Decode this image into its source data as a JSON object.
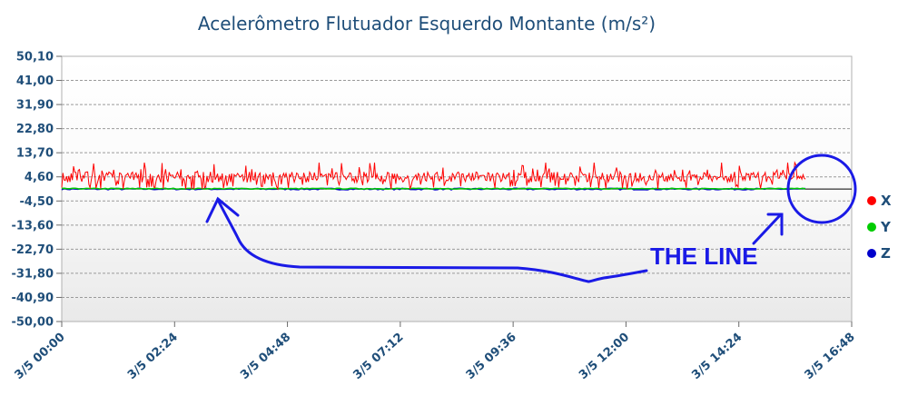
{
  "chart_data": {
    "type": "line",
    "title": "Acelerômetro Flutuador Esquerdo Montante (m/s²)",
    "xlabel": "",
    "ylabel": "",
    "y_ticks": [
      "50,10",
      "41,00",
      "31,90",
      "22,80",
      "13,70",
      "4,60",
      "-4,50",
      "-13,60",
      "-22,70",
      "-31,80",
      "-40,90",
      "-50,00"
    ],
    "y_tick_values": [
      50.1,
      41.0,
      31.9,
      22.8,
      13.7,
      4.6,
      -4.5,
      -13.6,
      -22.7,
      -31.8,
      -40.9,
      -50.0
    ],
    "ylim": [
      -50.0,
      50.1
    ],
    "x_ticks": [
      "3/5 00:00",
      "3/5 02:24",
      "3/5 04:48",
      "3/5 07:12",
      "3/5 09:36",
      "3/5 12:00",
      "3/5 14:24",
      "3/5 16:48"
    ],
    "xlim": [
      "3/5 00:00",
      "3/5 16:48"
    ],
    "data_end": "3/5 15:50",
    "grid": true,
    "legend_position": "right",
    "series": [
      {
        "name": "X",
        "color": "#ff0000",
        "y_range": [
          0.0,
          10.0
        ],
        "typical": 4.0
      },
      {
        "name": "Y",
        "color": "#00cc00",
        "y_range": [
          0.0,
          0.3
        ],
        "typical": 0.0
      },
      {
        "name": "Z",
        "color": "#0000cc",
        "y_range": [
          -0.3,
          0.3
        ],
        "typical": 0.0
      }
    ],
    "reference_line": {
      "value": 0.0,
      "color": "#000000"
    },
    "annotations": [
      {
        "text": "THE LINE",
        "color": "#1a1ae6"
      }
    ]
  }
}
